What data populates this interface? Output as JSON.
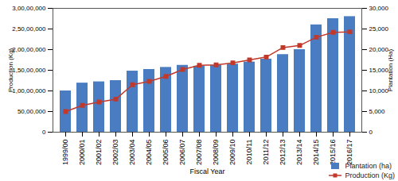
{
  "chart_data": {
    "type": "bar",
    "categories": [
      "1999/00",
      "2000/01",
      "2001/02",
      "2002/03",
      "2003/04",
      "2004/05",
      "2005/06",
      "2006/07",
      "2007/08",
      "2008/09",
      "2009/10",
      "2010/11",
      "2011/12",
      "2012/13",
      "2013/14",
      "2014/15",
      "2015/16",
      "2016/17"
    ],
    "series": [
      {
        "name": "Plantation (ha)",
        "type": "bar",
        "axis": "y2",
        "color": "#4a7cc2",
        "values": [
          10000,
          11900,
          12200,
          12500,
          14800,
          15200,
          15700,
          16200,
          16000,
          16200,
          16500,
          17000,
          17700,
          18800,
          20000,
          26000,
          27500,
          28000
        ]
      },
      {
        "name": "Production (Kg)",
        "type": "line",
        "color": "#c0392b",
        "marker": "square",
        "values": [
          5000000,
          6500000,
          7300000,
          8000000,
          11500000,
          12300000,
          13500000,
          15200000,
          16200000,
          16300000,
          16800000,
          17500000,
          18200000,
          20500000,
          21000000,
          23000000,
          24200000,
          24300000
        ]
      }
    ],
    "xlabel": "Fiscal Year",
    "ylabel": "Production (Kg)",
    "y2label": "Plantation (Ha)",
    "ylim": [
      0,
      30000000
    ],
    "yticks": [
      0,
      {
        "value": 5000000,
        "label": "50,00,000"
      },
      {
        "value": 10000000,
        "label": "1,00,00,000"
      },
      {
        "value": 15000000,
        "label": "1,50,00,000"
      },
      {
        "value": 20000000,
        "label": "2,00,00,000"
      },
      {
        "value": 25000000,
        "label": "2,50,00,000"
      },
      {
        "value": 30000000,
        "label": "3,00,00,000"
      }
    ],
    "y2lim": [
      0,
      30000
    ],
    "y2ticks": [
      0,
      {
        "value": 5000,
        "label": "5,000"
      },
      {
        "value": 10000,
        "label": "10,000"
      },
      {
        "value": 15000,
        "label": "15,000"
      },
      {
        "value": 20000,
        "label": "20,000"
      },
      {
        "value": 25000,
        "label": "25,000"
      },
      {
        "value": 30000,
        "label": "30,000"
      }
    ],
    "legend": "bottom right"
  }
}
